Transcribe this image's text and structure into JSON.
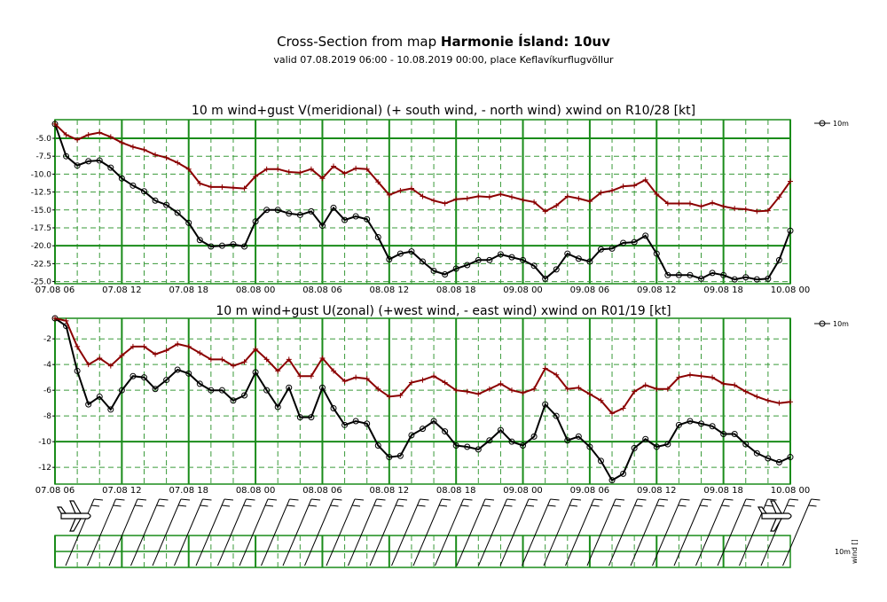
{
  "header": {
    "title_prefix": "Cross-Section from map ",
    "title_bold": "Harmonie Ísland: 10uv",
    "subtitle": "valid 07.08.2019 06:00 - 10.08.2019 00:00, place Keflavíkurflugvöllur"
  },
  "chart_data": [
    {
      "type": "line",
      "title": "10 m wind+gust V(meridional) (+ south wind, - north wind) xwind on R10/28 [kt]",
      "x_tick_labels": [
        "07.08 06",
        "07.08 12",
        "07.08 18",
        "08.08 00",
        "08.08 06",
        "08.08 12",
        "08.08 18",
        "09.08 00",
        "09.08 06",
        "09.08 12",
        "09.08 18",
        "10.08 00"
      ],
      "y_tick_labels": [
        "-5.0",
        "-7.5",
        "-10.0",
        "-12.5",
        "-15.0",
        "-17.5",
        "-20.0",
        "-22.5",
        "-25.0"
      ],
      "ylim": [
        -25.3,
        -2.4
      ],
      "y_ticks": [
        -5,
        -7.5,
        -10,
        -12.5,
        -15,
        -17.5,
        -20,
        -22.5,
        -25
      ],
      "y_major": [
        -5,
        -20
      ],
      "legend": {
        "label": "10m",
        "position": "top-right"
      },
      "series": [
        {
          "role": "wind",
          "color": "#000000",
          "marker": "circle",
          "values": [
            -3,
            -7.5,
            -8.8,
            -8.2,
            -8.1,
            -9.1,
            -10.6,
            -11.6,
            -12.4,
            -13.7,
            -14.3,
            -15.4,
            -16.8,
            -19.2,
            -20.1,
            -20.0,
            -19.8,
            -20.1,
            -16.6,
            -15.0,
            -15.0,
            -15.5,
            -15.7,
            -15.2,
            -17.2,
            -14.7,
            -16.4,
            -15.9,
            -16.3,
            -18.8,
            -21.9,
            -21.1,
            -20.8,
            -22.2,
            -23.5,
            -24.0,
            -23.2,
            -22.7,
            -22.0,
            -22.0,
            -21.2,
            -21.6,
            -22.0,
            -22.8,
            -24.6,
            -23.3,
            -21.1,
            -21.8,
            -22.2,
            -20.5,
            -20.4,
            -19.6,
            -19.5,
            -18.6,
            -21.1,
            -24.1,
            -24.1,
            -24.1,
            -24.6,
            -23.8,
            -24.1,
            -24.7,
            -24.4,
            -24.7,
            -24.6,
            -22.0,
            -17.9
          ]
        },
        {
          "role": "gust",
          "color": "#8b0000",
          "marker": "plus",
          "values": [
            -3,
            -4.5,
            -5.2,
            -4.5,
            -4.2,
            -4.8,
            -5.6,
            -6.2,
            -6.6,
            -7.3,
            -7.7,
            -8.4,
            -9.3,
            -11.3,
            -11.8,
            -11.8,
            -11.9,
            -12.0,
            -10.3,
            -9.3,
            -9.3,
            -9.7,
            -9.8,
            -9.3,
            -10.6,
            -8.9,
            -9.9,
            -9.2,
            -9.3,
            -11.1,
            -12.9,
            -12.3,
            -12.0,
            -13.1,
            -13.7,
            -14.1,
            -13.5,
            -13.4,
            -13.1,
            -13.2,
            -12.8,
            -13.2,
            -13.6,
            -13.9,
            -15.2,
            -14.4,
            -13.1,
            -13.4,
            -13.8,
            -12.6,
            -12.3,
            -11.7,
            -11.6,
            -10.8,
            -12.8,
            -14.1,
            -14.1,
            -14.1,
            -14.5,
            -14.0,
            -14.5,
            -14.8,
            -14.9,
            -15.2,
            -15.1,
            -13.2,
            -11.0
          ]
        }
      ]
    },
    {
      "type": "line",
      "title": "10 m wind+gust U(zonal) (+west wind, - east wind) xwind on R01/19 [kt]",
      "x_tick_labels": [
        "07.08 06",
        "07.08 12",
        "07.08 18",
        "08.08 00",
        "08.08 06",
        "08.08 12",
        "08.08 18",
        "09.08 00",
        "09.08 06",
        "09.08 12",
        "09.08 18",
        "10.08 00"
      ],
      "y_tick_labels": [
        "-2",
        "-4",
        "-6",
        "-8",
        "-10",
        "-12"
      ],
      "ylim": [
        -13.3,
        -0.4
      ],
      "y_ticks": [
        -2,
        -4,
        -6,
        -8,
        -10,
        -12
      ],
      "y_major": [
        -10
      ],
      "legend": {
        "label": "10m",
        "position": "top-right"
      },
      "series": [
        {
          "role": "wind",
          "color": "#000000",
          "marker": "circle",
          "values": [
            -0.4,
            -1.0,
            -4.5,
            -7.1,
            -6.5,
            -7.5,
            -6.0,
            -4.9,
            -5.0,
            -5.9,
            -5.2,
            -4.4,
            -4.7,
            -5.5,
            -6.0,
            -6.0,
            -6.8,
            -6.4,
            -4.6,
            -6.0,
            -7.3,
            -5.8,
            -8.1,
            -8.1,
            -5.8,
            -7.4,
            -8.7,
            -8.4,
            -8.6,
            -10.3,
            -11.2,
            -11.1,
            -9.5,
            -9.0,
            -8.4,
            -9.2,
            -10.3,
            -10.4,
            -10.6,
            -9.9,
            -9.1,
            -10.0,
            -10.3,
            -9.6,
            -7.1,
            -8.0,
            -9.9,
            -9.6,
            -10.4,
            -11.5,
            -13.0,
            -12.5,
            -10.5,
            -9.8,
            -10.4,
            -10.2,
            -8.7,
            -8.4,
            -8.6,
            -8.8,
            -9.4,
            -9.4,
            -10.2,
            -10.9,
            -11.3,
            -11.6,
            -11.2
          ]
        },
        {
          "role": "gust",
          "color": "#8b0000",
          "marker": "plus",
          "values": [
            -0.4,
            -0.6,
            -2.6,
            -4.0,
            -3.5,
            -4.1,
            -3.3,
            -2.6,
            -2.6,
            -3.2,
            -2.9,
            -2.4,
            -2.6,
            -3.1,
            -3.6,
            -3.6,
            -4.1,
            -3.8,
            -2.8,
            -3.6,
            -4.5,
            -3.6,
            -4.9,
            -4.9,
            -3.5,
            -4.5,
            -5.3,
            -5.0,
            -5.1,
            -5.9,
            -6.5,
            -6.4,
            -5.4,
            -5.2,
            -4.9,
            -5.4,
            -6.0,
            -6.1,
            -6.3,
            -5.9,
            -5.5,
            -6.0,
            -6.2,
            -5.9,
            -4.3,
            -4.8,
            -5.9,
            -5.8,
            -6.3,
            -6.8,
            -7.8,
            -7.4,
            -6.1,
            -5.6,
            -5.9,
            -5.9,
            -5.0,
            -4.8,
            -4.9,
            -5.0,
            -5.5,
            -5.6,
            -6.1,
            -6.5,
            -6.8,
            -7.0,
            -6.9
          ]
        }
      ]
    }
  ],
  "barbs": {
    "label": "10m",
    "side_label": "wind []",
    "plane_left_icon": "airplane-icon",
    "plane_right_icon": "airplane-icon"
  }
}
